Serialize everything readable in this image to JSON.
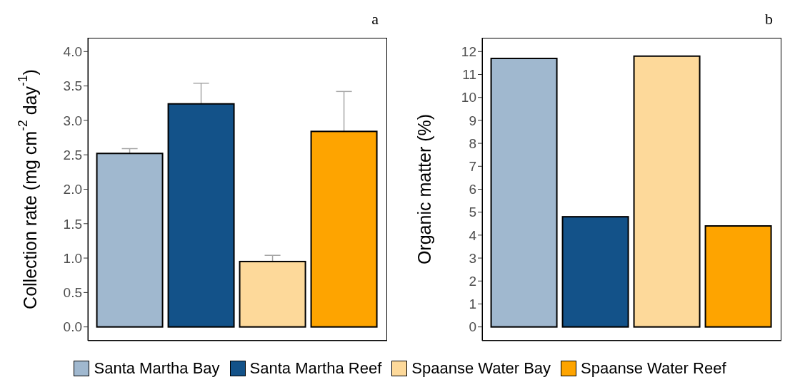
{
  "chart_data": [
    {
      "type": "bar",
      "title": "a",
      "ylabel": "Collection rate (mg cm$^{-2}$ day$^{-1}$)",
      "categories": [
        null
      ],
      "ylim": [
        -0.2,
        4.2
      ],
      "yticks": [
        {
          "value": 0,
          "label": "0.0"
        },
        0.5,
        {
          "value": 1,
          "label": "1.0"
        },
        1.5,
        {
          "value": 2,
          "label": "2.0"
        },
        2.5,
        {
          "value": 3,
          "label": "3.0"
        },
        3.5,
        {
          "value": 4,
          "label": "4.0"
        }
      ],
      "grid": false,
      "legend": "bottom",
      "series": [
        {
          "name": "Santa Martha Bay",
          "color": "#a0b8cf",
          "values": [
            2.52
          ],
          "errors": [
            0.07
          ]
        },
        {
          "name": "Santa Martha Reef",
          "color": "#135289",
          "values": [
            3.24
          ],
          "errors": [
            0.3
          ]
        },
        {
          "name": "Spaanse Water Bay",
          "color": "#fdd99a",
          "values": [
            0.95
          ],
          "errors": [
            0.09
          ]
        },
        {
          "name": "Spaanse Water Reef",
          "color": "#fea400",
          "values": [
            2.84
          ],
          "errors": [
            0.58
          ]
        }
      ]
    },
    {
      "type": "bar",
      "title": "b",
      "ylabel": "Organic matter (%)",
      "categories": [
        null
      ],
      "ylim": [
        -0.6,
        12.6
      ],
      "yticks": [
        0,
        1,
        2,
        3,
        4,
        5,
        6,
        7,
        8,
        9,
        10,
        11,
        12
      ],
      "grid": false,
      "series": [
        {
          "color": "#a0b8cf",
          "values": [
            11.7
          ]
        },
        {
          "color": "#135289",
          "values": [
            4.8
          ]
        },
        {
          "color": "#fdd99a",
          "values": [
            11.8
          ]
        },
        {
          "color": "#fea400",
          "values": [
            4.4
          ]
        }
      ]
    }
  ]
}
